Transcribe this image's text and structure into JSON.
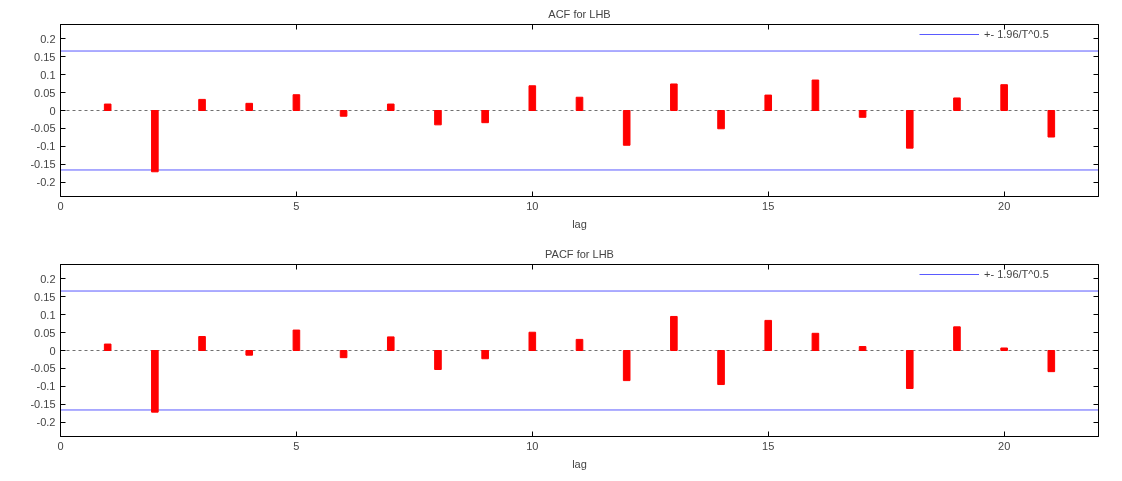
{
  "chart_data": [
    {
      "type": "bar",
      "title": "ACF for LHB",
      "xlabel": "lag",
      "x": [
        1,
        2,
        3,
        4,
        5,
        6,
        7,
        8,
        9,
        10,
        11,
        12,
        13,
        14,
        15,
        16,
        17,
        18,
        19,
        20,
        21
      ],
      "series": [
        {
          "color": "#ff0000",
          "values": [
            0.018,
            -0.171,
            0.031,
            0.02,
            0.044,
            -0.016,
            0.018,
            -0.04,
            -0.034,
            0.069,
            0.037,
            -0.097,
            0.074,
            -0.051,
            0.043,
            0.085,
            -0.019,
            -0.105,
            0.035,
            0.072,
            -0.074
          ]
        }
      ],
      "xlim": [
        0,
        22
      ],
      "ylim": [
        -0.24,
        0.24
      ],
      "xticks": [
        0,
        5,
        10,
        15,
        20
      ],
      "yticks": [
        -0.2,
        -0.15,
        -0.1,
        -0.05,
        0,
        0.05,
        0.1,
        0.15,
        0.2
      ],
      "ref_lines": [
        {
          "axis": "y",
          "value": 0.166,
          "label": "+- 1.96/T^0.5",
          "color": "#5a5aff",
          "line_style": "solid"
        },
        {
          "axis": "y",
          "value": -0.166,
          "color": "#5a5aff",
          "line_style": "solid"
        },
        {
          "axis": "y",
          "value": 0,
          "color": "#707070",
          "line_style": "dotted"
        }
      ],
      "legend": "top right",
      "grid": false
    },
    {
      "type": "bar",
      "title": "PACF for LHB",
      "xlabel": "lag",
      "x": [
        1,
        2,
        3,
        4,
        5,
        6,
        7,
        8,
        9,
        10,
        11,
        12,
        13,
        14,
        15,
        16,
        17,
        18,
        19,
        20,
        21
      ],
      "series": [
        {
          "color": "#ff0000",
          "values": [
            0.018,
            -0.172,
            0.039,
            -0.013,
            0.057,
            -0.02,
            0.038,
            -0.053,
            -0.023,
            0.051,
            0.031,
            -0.084,
            0.095,
            -0.095,
            0.084,
            0.048,
            0.011,
            -0.106,
            0.066,
            0.007,
            -0.059
          ]
        }
      ],
      "xlim": [
        0,
        22
      ],
      "ylim": [
        -0.24,
        0.24
      ],
      "xticks": [
        0,
        5,
        10,
        15,
        20
      ],
      "yticks": [
        -0.2,
        -0.15,
        -0.1,
        -0.05,
        0,
        0.05,
        0.1,
        0.15,
        0.2
      ],
      "ref_lines": [
        {
          "axis": "y",
          "value": 0.166,
          "label": "+- 1.96/T^0.5",
          "color": "#5a5aff",
          "line_style": "solid"
        },
        {
          "axis": "y",
          "value": -0.166,
          "color": "#5a5aff",
          "line_style": "solid"
        },
        {
          "axis": "y",
          "value": 0,
          "color": "#707070",
          "line_style": "dotted"
        }
      ],
      "legend": "top right",
      "grid": false
    }
  ]
}
